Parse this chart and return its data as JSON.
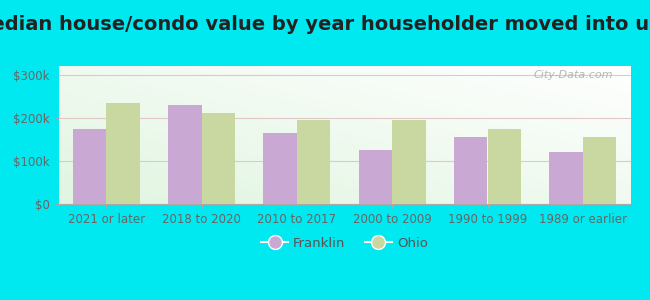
{
  "title": "Median house/condo value by year householder moved into unit",
  "categories": [
    "2021 or later",
    "2018 to 2020",
    "2010 to 2017",
    "2000 to 2009",
    "1990 to 1999",
    "1989 or earlier"
  ],
  "franklin_values": [
    175000,
    230000,
    165000,
    125000,
    155000,
    120000
  ],
  "ohio_values": [
    235000,
    210000,
    195000,
    195000,
    175000,
    155000
  ],
  "franklin_color": "#c9a8d4",
  "ohio_color": "#c8d8a0",
  "background_outer": "#00e8f0",
  "yticks": [
    0,
    100000,
    200000,
    300000
  ],
  "ytick_labels": [
    "$0",
    "$100k",
    "$200k",
    "$300k"
  ],
  "ylim": [
    0,
    320000
  ],
  "bar_width": 0.35,
  "legend_labels": [
    "Franklin",
    "Ohio"
  ],
  "watermark": "City-Data.com",
  "title_fontsize": 14,
  "tick_fontsize": 8.5,
  "legend_fontsize": 9.5
}
